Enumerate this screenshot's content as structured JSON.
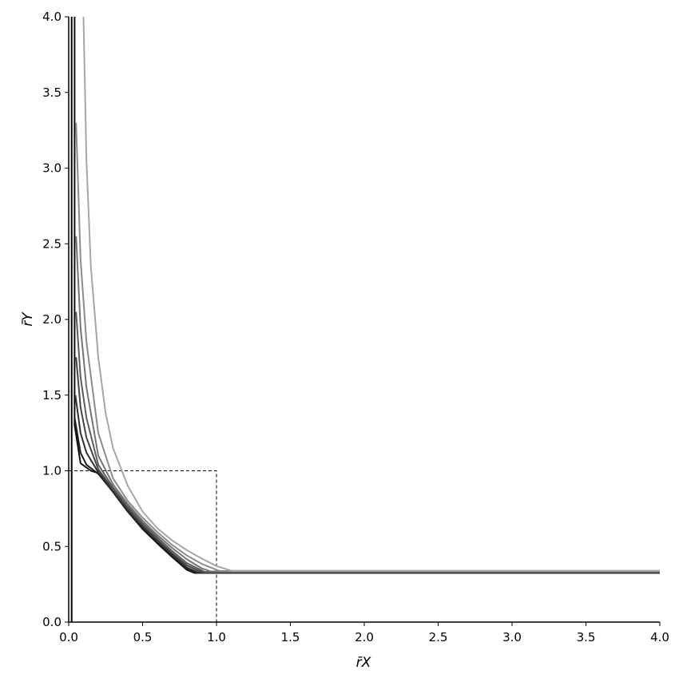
{
  "chart_data": {
    "type": "line",
    "title": "",
    "xlabel": "r̄X",
    "ylabel": "r̄Y",
    "xlim": [
      0,
      4
    ],
    "ylim": [
      0,
      4
    ],
    "grid": false,
    "legend": "none",
    "x_ticks": [
      "0.0",
      "0.5",
      "1.0",
      "1.5",
      "2.0",
      "2.5",
      "3.0",
      "3.5",
      "4.0"
    ],
    "y_ticks": [
      "0.0",
      "0.5",
      "1.0",
      "1.5",
      "2.0",
      "2.5",
      "3.0",
      "3.5",
      "4.0"
    ],
    "reference_box": {
      "x": [
        0,
        1,
        1
      ],
      "y": [
        1,
        1,
        0
      ],
      "style": "dashed"
    },
    "series": [
      {
        "color": "#000000",
        "x": [
          0.02,
          0.02
        ],
        "y": [
          0,
          4.0
        ]
      },
      {
        "color": "#111111",
        "x": [
          0.04,
          0.04,
          0.08,
          0.15,
          0.2,
          0.3,
          0.4,
          0.5,
          0.6,
          0.7,
          0.8,
          0.85,
          1.0,
          2.0,
          3.0,
          4.0
        ],
        "y": [
          4.0,
          1.3,
          1.05,
          1.0,
          0.985,
          0.86,
          0.73,
          0.615,
          0.52,
          0.43,
          0.345,
          0.325,
          0.325,
          0.325,
          0.325,
          0.325
        ]
      },
      {
        "color": "#1c1c1c",
        "x": [
          0.04,
          0.08,
          0.12,
          0.2,
          0.3,
          0.4,
          0.5,
          0.6,
          0.7,
          0.8,
          0.86,
          1.0,
          2.0,
          3.0,
          4.0
        ],
        "y": [
          1.35,
          1.12,
          1.04,
          0.98,
          0.86,
          0.73,
          0.62,
          0.525,
          0.435,
          0.35,
          0.325,
          0.325,
          0.325,
          0.325,
          0.325
        ]
      },
      {
        "color": "#2e2e2e",
        "x": [
          0.045,
          0.08,
          0.12,
          0.2,
          0.3,
          0.4,
          0.5,
          0.6,
          0.7,
          0.8,
          0.88,
          1.0,
          2.0,
          3.0,
          4.0
        ],
        "y": [
          1.5,
          1.25,
          1.12,
          0.99,
          0.865,
          0.74,
          0.63,
          0.535,
          0.445,
          0.36,
          0.327,
          0.327,
          0.327,
          0.327,
          0.327
        ]
      },
      {
        "color": "#444444",
        "x": [
          0.05,
          0.08,
          0.12,
          0.2,
          0.3,
          0.4,
          0.5,
          0.6,
          0.7,
          0.8,
          0.9,
          1.0,
          2.0,
          3.0,
          4.0
        ],
        "y": [
          1.75,
          1.42,
          1.22,
          1.01,
          0.875,
          0.75,
          0.64,
          0.545,
          0.455,
          0.375,
          0.33,
          0.33,
          0.33,
          0.33,
          0.33
        ]
      },
      {
        "color": "#5c5c5c",
        "x": [
          0.05,
          0.08,
          0.12,
          0.2,
          0.3,
          0.4,
          0.5,
          0.6,
          0.7,
          0.8,
          0.92,
          1.0,
          2.0,
          3.0,
          4.0
        ],
        "y": [
          2.05,
          1.62,
          1.35,
          1.04,
          0.89,
          0.765,
          0.655,
          0.56,
          0.47,
          0.39,
          0.332,
          0.332,
          0.332,
          0.332,
          0.332
        ]
      },
      {
        "color": "#747474",
        "x": [
          0.05,
          0.08,
          0.12,
          0.2,
          0.3,
          0.4,
          0.5,
          0.6,
          0.7,
          0.8,
          0.9,
          0.96,
          1.0,
          2.0,
          3.0,
          4.0
        ],
        "y": [
          2.55,
          1.95,
          1.55,
          1.1,
          0.91,
          0.78,
          0.67,
          0.575,
          0.49,
          0.415,
          0.355,
          0.335,
          0.335,
          0.335,
          0.335,
          0.335
        ]
      },
      {
        "color": "#8c8c8c",
        "x": [
          0.05,
          0.08,
          0.12,
          0.2,
          0.3,
          0.4,
          0.5,
          0.6,
          0.7,
          0.8,
          0.9,
          1.02,
          2.0,
          3.0,
          4.0
        ],
        "y": [
          3.3,
          2.4,
          1.85,
          1.25,
          0.95,
          0.8,
          0.69,
          0.595,
          0.51,
          0.44,
          0.385,
          0.338,
          0.338,
          0.338,
          0.338
        ]
      },
      {
        "color": "#a6a6a6",
        "x": [
          0.1,
          0.12,
          0.15,
          0.2,
          0.25,
          0.3,
          0.4,
          0.5,
          0.6,
          0.7,
          0.8,
          0.9,
          1.0,
          1.1,
          2.0,
          3.0,
          4.0
        ],
        "y": [
          4.0,
          3.05,
          2.35,
          1.75,
          1.38,
          1.15,
          0.9,
          0.73,
          0.62,
          0.54,
          0.475,
          0.42,
          0.37,
          0.34,
          0.34,
          0.34,
          0.34
        ]
      }
    ]
  }
}
